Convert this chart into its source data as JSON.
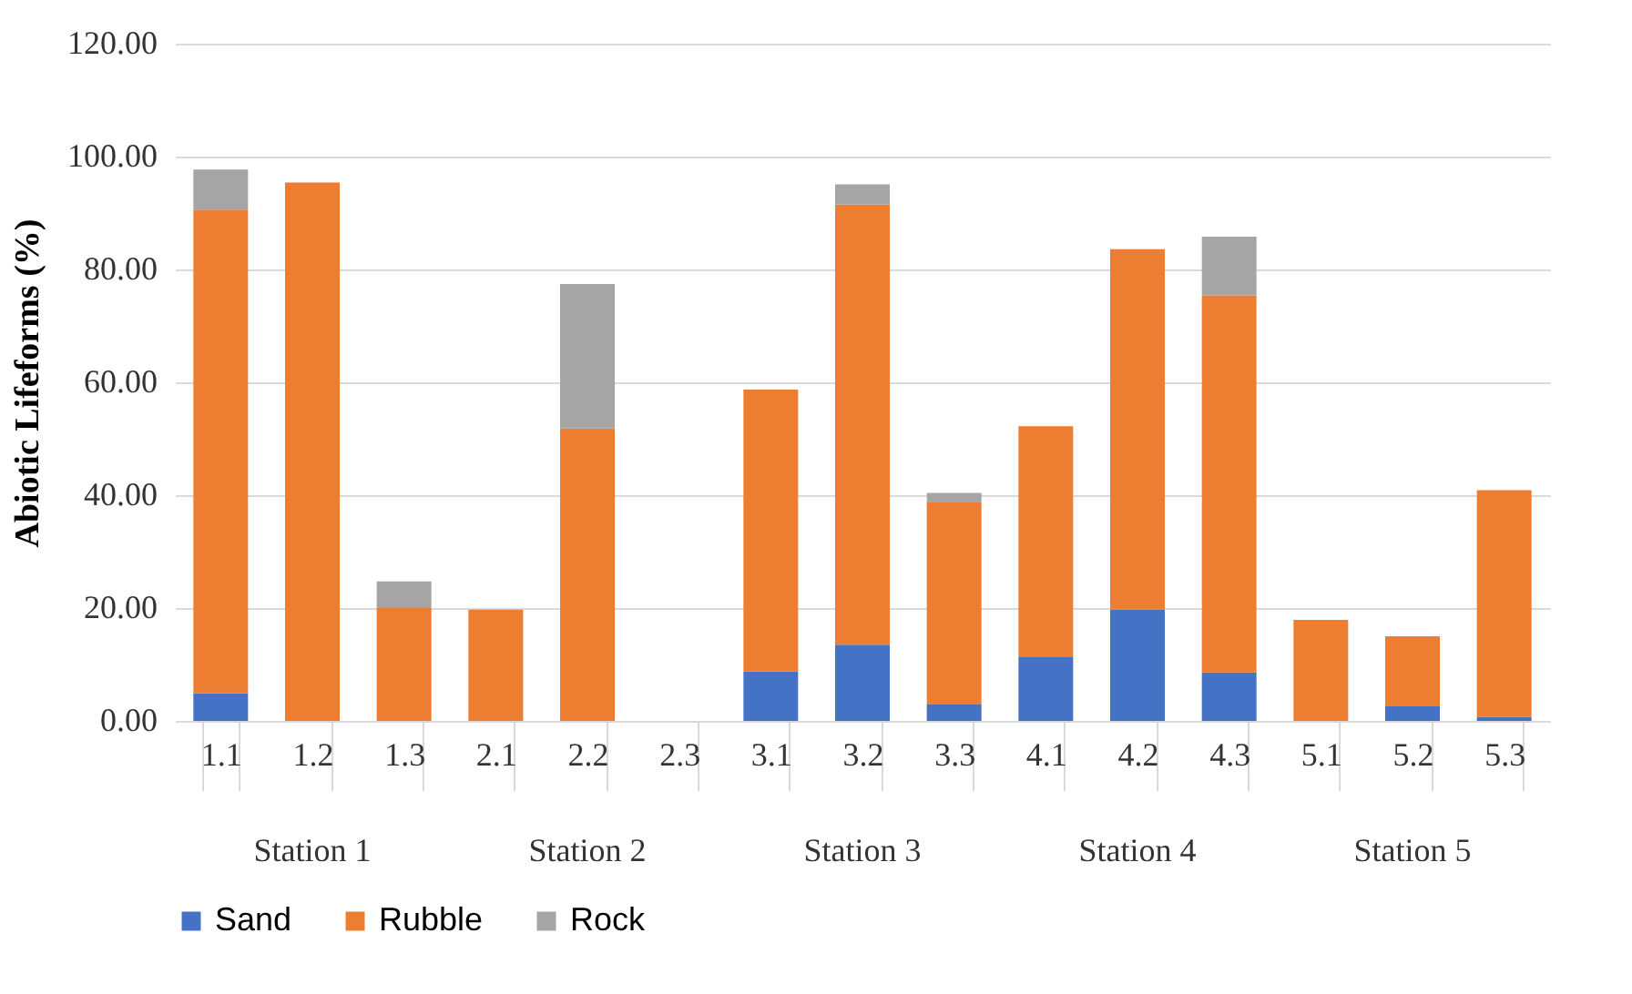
{
  "chart_data": {
    "type": "bar",
    "stacked": true,
    "ylabel": "Abiotic Lifeforms (%)",
    "categories": [
      "1.1",
      "1.2",
      "1.3",
      "2.1",
      "2.2",
      "2.3",
      "3.1",
      "3.2",
      "3.3",
      "4.1",
      "4.2",
      "4.3",
      "5.1",
      "5.2",
      "5.3"
    ],
    "series": [
      {
        "name": "Sand",
        "color": "#4472c4",
        "values": [
          4.9,
          0,
          0,
          0,
          0,
          0,
          8.8,
          13.5,
          2.9,
          11.4,
          19.7,
          8.6,
          0,
          2.6,
          0.7
        ]
      },
      {
        "name": "Rubble",
        "color": "#ed7d31",
        "values": [
          85.7,
          95.4,
          20.0,
          19.7,
          51.8,
          0,
          49.9,
          78.0,
          35.8,
          40.8,
          63.9,
          66.8,
          17.9,
          12.4,
          40.2
        ]
      },
      {
        "name": "Rock",
        "color": "#a5a5a5",
        "values": [
          7.1,
          0,
          4.7,
          0,
          25.6,
          0,
          0,
          3.6,
          1.7,
          0,
          0,
          10.4,
          0,
          0,
          0
        ]
      }
    ],
    "ylim": [
      0,
      120
    ],
    "yticks": [
      {
        "value": 0,
        "label": "0.00"
      },
      {
        "value": 20,
        "label": "20.00"
      },
      {
        "value": 40,
        "label": "40.00"
      },
      {
        "value": 60,
        "label": "60.00"
      },
      {
        "value": 80,
        "label": "80.00"
      },
      {
        "value": 100,
        "label": "100.00"
      },
      {
        "value": 120,
        "label": "120.00"
      }
    ],
    "grid": "y",
    "legend": "bottom",
    "annotations": [
      "Station 1",
      "Station 2",
      "Station 3",
      "Station 4",
      "Station 5"
    ]
  }
}
